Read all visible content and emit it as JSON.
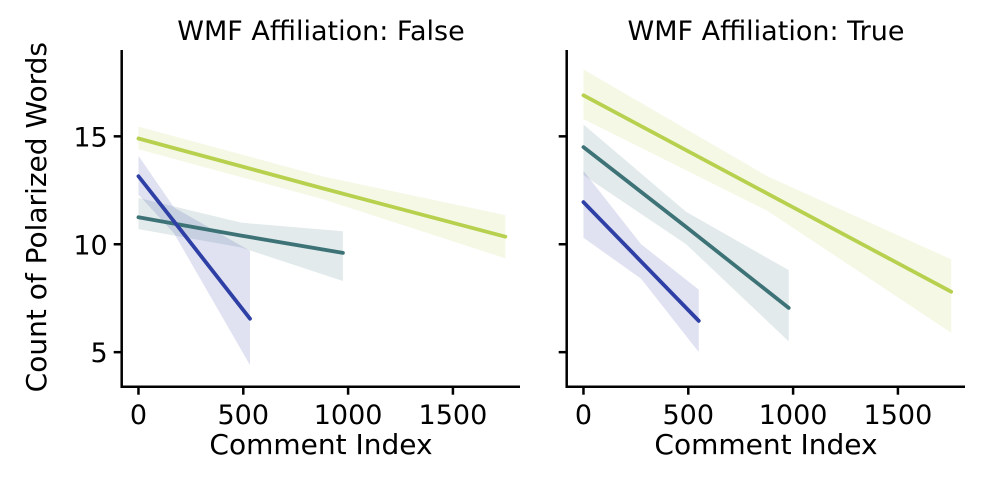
{
  "figure": {
    "background": "#ffffff",
    "ylabel": "Count of Polarized Words",
    "xlabel": "Comment Index",
    "axis_color": "#000000"
  },
  "chart_data": [
    {
      "type": "line",
      "title": "WMF Affiliation: False",
      "xlabel": "Comment Index",
      "ylabel": "Count of Polarized Words",
      "xlim": [
        -80,
        1820
      ],
      "ylim": [
        3.4,
        19.0
      ],
      "xticks": [
        0,
        500,
        1000,
        1500
      ],
      "yticks": [
        5,
        10,
        15
      ],
      "grid": false,
      "legend": null,
      "series": [
        {
          "name": "yellow-green",
          "color": "#b7d14f",
          "x": [
            0,
            875,
            1750
          ],
          "y": [
            14.9,
            12.6,
            10.35
          ],
          "ci_upper": [
            15.45,
            13.15,
            11.35
          ],
          "ci_lower": [
            14.4,
            12.1,
            9.35
          ]
        },
        {
          "name": "teal",
          "color": "#3d7377",
          "x": [
            0,
            490,
            975
          ],
          "y": [
            11.25,
            10.4,
            9.6
          ],
          "ci_upper": [
            12.15,
            11.0,
            10.6
          ],
          "ci_lower": [
            10.7,
            9.85,
            8.3
          ]
        },
        {
          "name": "dark-blue",
          "color": "#2e3fa5",
          "x": [
            0,
            170,
            532
          ],
          "y": [
            13.15,
            11.05,
            6.55
          ],
          "ci_upper": [
            14.1,
            11.7,
            9.7
          ],
          "ci_lower": [
            12.3,
            10.5,
            4.4
          ]
        }
      ]
    },
    {
      "type": "line",
      "title": "WMF Affiliation: True",
      "xlabel": "Comment Index",
      "ylabel": "Count of Polarized Words",
      "xlim": [
        -80,
        1820
      ],
      "ylim": [
        3.4,
        19.0
      ],
      "xticks": [
        0,
        500,
        1000,
        1500
      ],
      "yticks": [
        5,
        10,
        15
      ],
      "grid": false,
      "legend": null,
      "series": [
        {
          "name": "yellow-green",
          "color": "#b7d14f",
          "x": [
            0,
            877,
            1754
          ],
          "y": [
            16.9,
            12.35,
            7.8
          ],
          "ci_upper": [
            18.1,
            13.15,
            9.3
          ],
          "ci_lower": [
            15.8,
            11.55,
            5.9
          ]
        },
        {
          "name": "teal",
          "color": "#3d7377",
          "x": [
            0,
            490,
            979
          ],
          "y": [
            14.5,
            10.8,
            7.05
          ],
          "ci_upper": [
            15.55,
            11.5,
            8.8
          ],
          "ci_lower": [
            13.2,
            10.0,
            5.5
          ]
        },
        {
          "name": "dark-blue",
          "color": "#2e3fa5",
          "x": [
            0,
            275,
            550
          ],
          "y": [
            11.95,
            9.2,
            6.45
          ],
          "ci_upper": [
            13.4,
            10.0,
            7.9
          ],
          "ci_lower": [
            10.3,
            8.4,
            5.0
          ]
        }
      ]
    }
  ]
}
